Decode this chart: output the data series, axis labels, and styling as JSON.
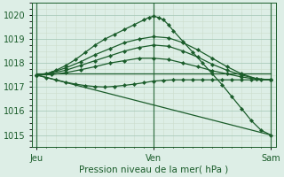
{
  "bg_color": "#ddeee6",
  "grid_color_major": "#aaccbb",
  "grid_color_minor": "#ccddcc",
  "line_color": "#1a5c2a",
  "title": "Pression niveau de la mer( hPa )",
  "ylim": [
    1014.5,
    1020.5
  ],
  "yticks": [
    1015,
    1016,
    1017,
    1018,
    1019,
    1020
  ],
  "x_jeu": 0,
  "x_ven": 48,
  "x_sam": 96,
  "xlim": [
    -2,
    98
  ],
  "lines": [
    {
      "x": [
        0,
        96
      ],
      "y": [
        1017.55,
        1017.55
      ],
      "markers": false
    },
    {
      "x": [
        0,
        96
      ],
      "y": [
        1017.5,
        1015.0
      ],
      "markers": false
    },
    {
      "x": [
        0,
        4,
        8,
        12,
        16,
        20,
        24,
        28,
        32,
        36,
        40,
        44,
        46,
        48,
        50,
        52,
        54,
        56,
        60,
        64,
        68,
        72,
        76,
        80,
        84,
        88,
        92,
        96
      ],
      "y": [
        1017.5,
        1017.55,
        1017.7,
        1017.9,
        1018.15,
        1018.45,
        1018.75,
        1019.0,
        1019.2,
        1019.4,
        1019.6,
        1019.8,
        1019.9,
        1019.95,
        1019.9,
        1019.8,
        1019.6,
        1019.35,
        1018.9,
        1018.45,
        1018.0,
        1017.55,
        1017.1,
        1016.6,
        1016.1,
        1015.6,
        1015.2,
        1015.0
      ],
      "markers": true
    },
    {
      "x": [
        0,
        6,
        12,
        18,
        24,
        30,
        36,
        42,
        48,
        54,
        60,
        66,
        72,
        78,
        84,
        90,
        96
      ],
      "y": [
        1017.5,
        1017.6,
        1017.8,
        1018.05,
        1018.35,
        1018.6,
        1018.85,
        1019.0,
        1019.1,
        1019.05,
        1018.85,
        1018.55,
        1018.2,
        1017.85,
        1017.55,
        1017.35,
        1017.3
      ],
      "markers": true
    },
    {
      "x": [
        0,
        6,
        12,
        18,
        24,
        30,
        36,
        42,
        48,
        54,
        60,
        66,
        72,
        78,
        84,
        90,
        96
      ],
      "y": [
        1017.5,
        1017.57,
        1017.7,
        1017.9,
        1018.1,
        1018.3,
        1018.5,
        1018.65,
        1018.75,
        1018.7,
        1018.5,
        1018.25,
        1017.95,
        1017.7,
        1017.5,
        1017.35,
        1017.3
      ],
      "markers": true
    },
    {
      "x": [
        0,
        6,
        12,
        18,
        24,
        30,
        36,
        42,
        48,
        54,
        60,
        66,
        72,
        78,
        84,
        90,
        96
      ],
      "y": [
        1017.5,
        1017.52,
        1017.6,
        1017.72,
        1017.85,
        1018.0,
        1018.1,
        1018.2,
        1018.2,
        1018.15,
        1018.0,
        1017.85,
        1017.68,
        1017.55,
        1017.42,
        1017.33,
        1017.3
      ],
      "markers": true
    },
    {
      "x": [
        0,
        4,
        8,
        12,
        16,
        20,
        24,
        28,
        32,
        36,
        40,
        44,
        48,
        52,
        56,
        60,
        64,
        68,
        72,
        76,
        80,
        84,
        88,
        92,
        96
      ],
      "y": [
        1017.5,
        1017.4,
        1017.3,
        1017.2,
        1017.12,
        1017.06,
        1017.02,
        1017.0,
        1017.03,
        1017.07,
        1017.12,
        1017.18,
        1017.25,
        1017.28,
        1017.3,
        1017.3,
        1017.3,
        1017.3,
        1017.3,
        1017.3,
        1017.3,
        1017.3,
        1017.3,
        1017.3,
        1017.3
      ],
      "markers": true
    }
  ]
}
